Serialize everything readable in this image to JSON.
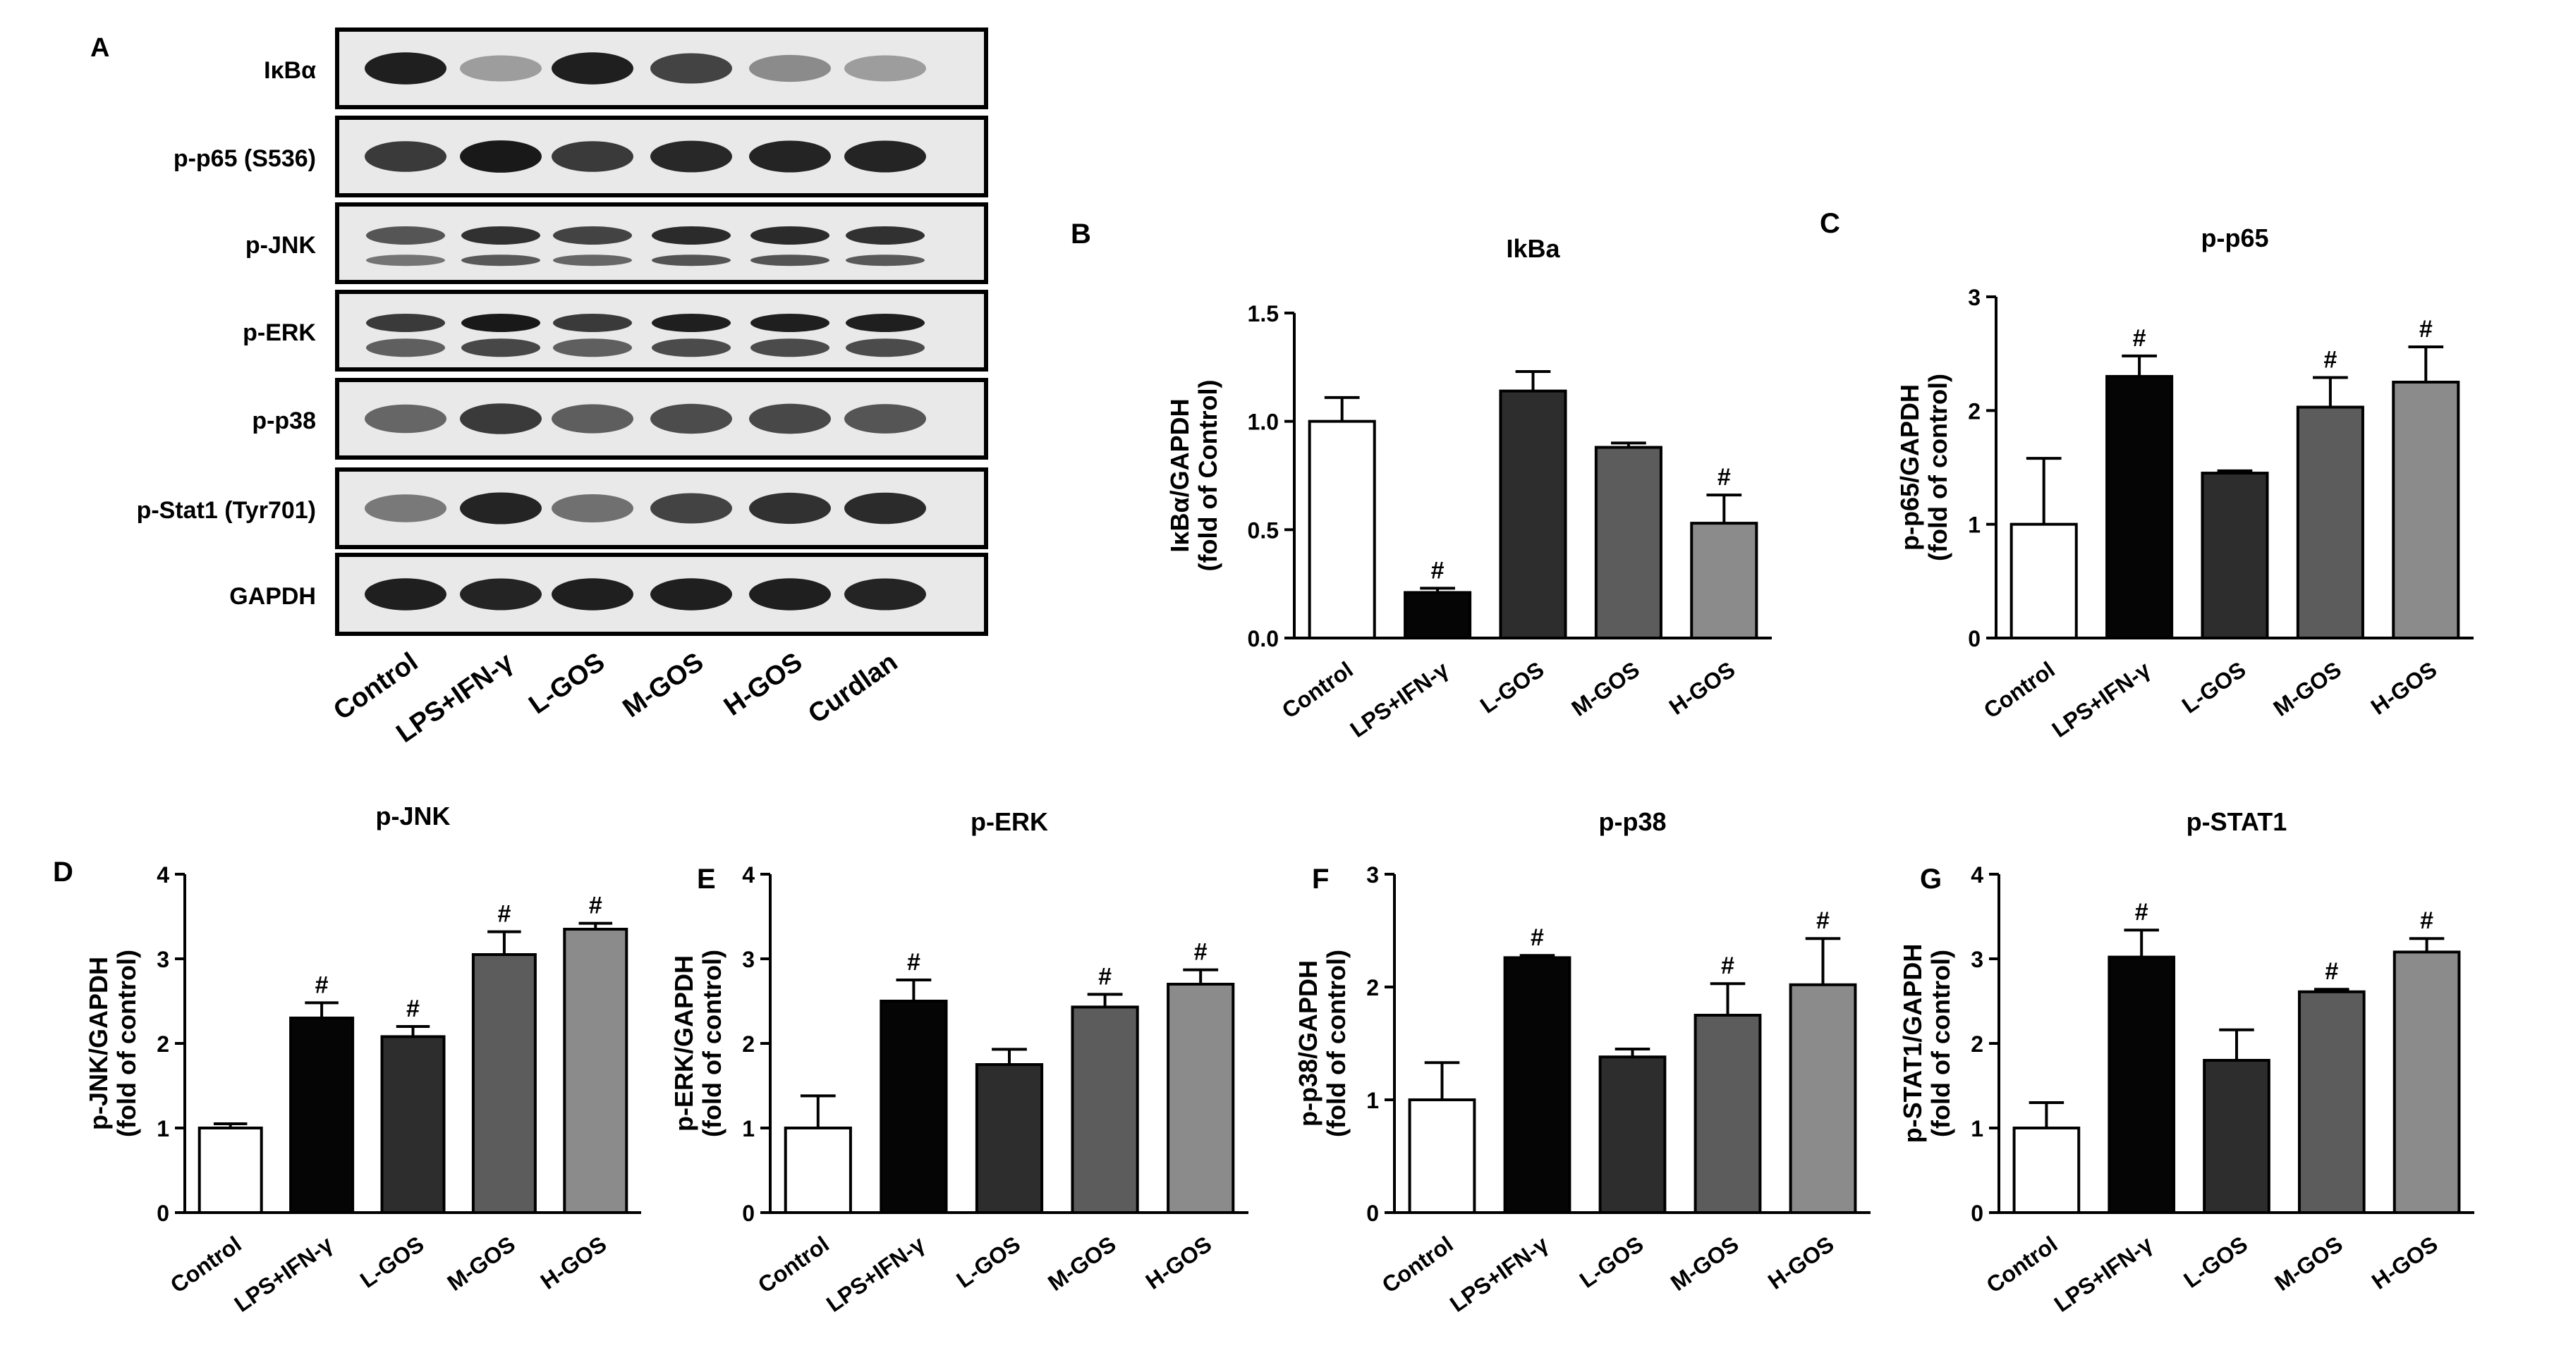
{
  "colors": {
    "Control": "#ffffff",
    "LPS+IFN-γ": "#050505",
    "L-GOS": "#2d2d2d",
    "M-GOS": "#5c5c5c",
    "H-GOS": "#8b8b8b"
  },
  "blot": {
    "label": "A",
    "rows": [
      "IκBα",
      "p-p65 (S536)",
      "p-JNK",
      "p-ERK",
      "p-p38",
      "p-Stat1 (Tyr701)",
      "GAPDH"
    ],
    "lanes": [
      "Control",
      "LPS+IFN-γ",
      "L-GOS",
      "M-GOS",
      "H-GOS",
      "Curdlan"
    ]
  },
  "chart_data": [
    {
      "panel": "B",
      "type": "bar",
      "title": "IkBa",
      "ylabel": [
        "IκBα/GAPDH",
        "(fold of Control)"
      ],
      "ylim": [
        0,
        1.5
      ],
      "yticks": [
        "0.0",
        "0.5",
        "1.0",
        "1.5"
      ],
      "categories": [
        "Control",
        "LPS+IFN-γ",
        "L-GOS",
        "M-GOS",
        "H-GOS"
      ],
      "values": [
        1.0,
        0.21,
        1.14,
        0.88,
        0.53
      ],
      "errors": [
        0.11,
        0.02,
        0.09,
        0.02,
        0.13
      ],
      "marks": [
        "",
        "#",
        "",
        "",
        "#"
      ]
    },
    {
      "panel": "C",
      "type": "bar",
      "title": "p-p65",
      "ylabel": [
        "p-p65/GAPDH",
        "(fold of control)"
      ],
      "ylim": [
        0,
        3
      ],
      "yticks": [
        "0",
        "1",
        "2",
        "3"
      ],
      "categories": [
        "Control",
        "LPS+IFN-γ",
        "L-GOS",
        "M-GOS",
        "H-GOS"
      ],
      "values": [
        1.0,
        2.3,
        1.45,
        2.03,
        2.25
      ],
      "errors": [
        0.58,
        0.18,
        0.02,
        0.26,
        0.31
      ],
      "marks": [
        "",
        "#",
        "",
        "#",
        "#"
      ]
    },
    {
      "panel": "D",
      "type": "bar",
      "title": "p-JNK",
      "ylabel": [
        "p-JNK/GAPDH",
        "(fold of control)"
      ],
      "ylim": [
        0,
        4
      ],
      "yticks": [
        "0",
        "1",
        "2",
        "3",
        "4"
      ],
      "categories": [
        "Control",
        "LPS+IFN-γ",
        "L-GOS",
        "M-GOS",
        "H-GOS"
      ],
      "values": [
        1.0,
        2.3,
        2.08,
        3.05,
        3.35
      ],
      "errors": [
        0.05,
        0.18,
        0.12,
        0.27,
        0.07
      ],
      "marks": [
        "",
        "#",
        "#",
        "#",
        "#"
      ]
    },
    {
      "panel": "E",
      "type": "bar",
      "title": "p-ERK",
      "ylabel": [
        "p-ERK/GAPDH",
        "(fold of control)"
      ],
      "ylim": [
        0,
        4
      ],
      "yticks": [
        "0",
        "1",
        "2",
        "3",
        "4"
      ],
      "categories": [
        "Control",
        "LPS+IFN-γ",
        "L-GOS",
        "M-GOS",
        "H-GOS"
      ],
      "values": [
        1.0,
        2.5,
        1.75,
        2.43,
        2.7
      ],
      "errors": [
        0.38,
        0.25,
        0.18,
        0.15,
        0.17
      ],
      "marks": [
        "",
        "#",
        "",
        "#",
        "#"
      ]
    },
    {
      "panel": "F",
      "type": "bar",
      "title": "p-p38",
      "ylabel": [
        "p-p38/GAPDH",
        "(fold of control)"
      ],
      "ylim": [
        0,
        3
      ],
      "yticks": [
        "0",
        "1",
        "2",
        "3"
      ],
      "categories": [
        "Control",
        "LPS+IFN-γ",
        "L-GOS",
        "M-GOS",
        "H-GOS"
      ],
      "values": [
        1.0,
        2.26,
        1.38,
        1.75,
        2.02
      ],
      "errors": [
        0.33,
        0.02,
        0.07,
        0.28,
        0.41
      ],
      "marks": [
        "",
        "#",
        "",
        "#",
        "#"
      ]
    },
    {
      "panel": "G",
      "type": "bar",
      "title": "p-STAT1",
      "ylabel": [
        "p-STAT1/GAPDH",
        "(fold of control)"
      ],
      "ylim": [
        0,
        4
      ],
      "yticks": [
        "0",
        "1",
        "2",
        "3",
        "4"
      ],
      "categories": [
        "Control",
        "LPS+IFN-γ",
        "L-GOS",
        "M-GOS",
        "H-GOS"
      ],
      "values": [
        1.0,
        3.02,
        1.8,
        2.61,
        3.08
      ],
      "errors": [
        0.3,
        0.32,
        0.36,
        0.03,
        0.16
      ],
      "marks": [
        "",
        "#",
        "",
        "#",
        "#"
      ]
    }
  ]
}
